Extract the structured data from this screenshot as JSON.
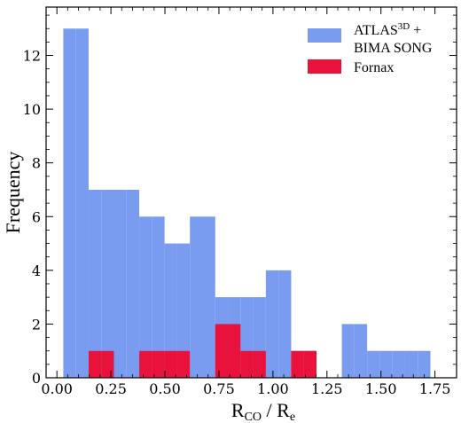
{
  "chart_data": {
    "type": "bar",
    "title": "",
    "xlabel": {
      "main": "R",
      "main_sub": "CO",
      "sep": " / ",
      "second": "R",
      "second_sub": "e"
    },
    "ylabel": "Frequency",
    "xlim": [
      -0.05,
      1.85
    ],
    "ylim": [
      0,
      13.8
    ],
    "xticks": [
      0.0,
      0.25,
      0.5,
      0.75,
      1.0,
      1.25,
      1.5,
      1.75
    ],
    "xtick_labels": [
      "0.00",
      "0.25",
      "0.50",
      "0.75",
      "1.00",
      "1.25",
      "1.50",
      "1.75"
    ],
    "yticks": [
      0,
      2,
      4,
      6,
      8,
      10,
      12
    ],
    "ytick_labels": [
      "0",
      "2",
      "4",
      "6",
      "8",
      "10",
      "12"
    ],
    "bin_edges": [
      0.0296,
      0.0882,
      0.1468,
      0.2054,
      0.264,
      0.3226,
      0.3812,
      0.4398,
      0.4984,
      0.557,
      0.6156,
      0.6742,
      0.7328,
      0.7914,
      0.85,
      0.9086,
      0.9672,
      1.0258,
      1.0844,
      1.143,
      1.2016,
      1.2602,
      1.3188,
      1.3774,
      1.436,
      1.4946,
      1.5532,
      1.6118,
      1.6704,
      1.729
    ],
    "legend_position": "top-right",
    "series": [
      {
        "name": "ATLAS3D + BIMA SONG",
        "legend_label": {
          "main": "ATLAS",
          "sup": "3D",
          "tail": " +",
          "line2": "BIMA SONG"
        },
        "color": "#7a9cf0",
        "values": [
          13,
          13,
          7,
          7,
          7,
          7,
          6,
          6,
          5,
          5,
          6,
          6,
          3,
          3,
          3,
          3,
          4,
          4,
          1,
          1,
          0,
          0,
          2,
          2,
          1,
          1,
          1,
          1,
          1
        ]
      },
      {
        "name": "Fornax",
        "color": "#e8123d",
        "values": [
          0,
          0,
          1,
          1,
          0,
          0,
          1,
          1,
          1,
          1,
          0,
          0,
          2,
          2,
          1,
          1,
          0,
          0,
          1,
          1,
          0,
          0,
          0,
          0,
          0,
          0,
          0,
          0,
          0
        ]
      }
    ]
  }
}
